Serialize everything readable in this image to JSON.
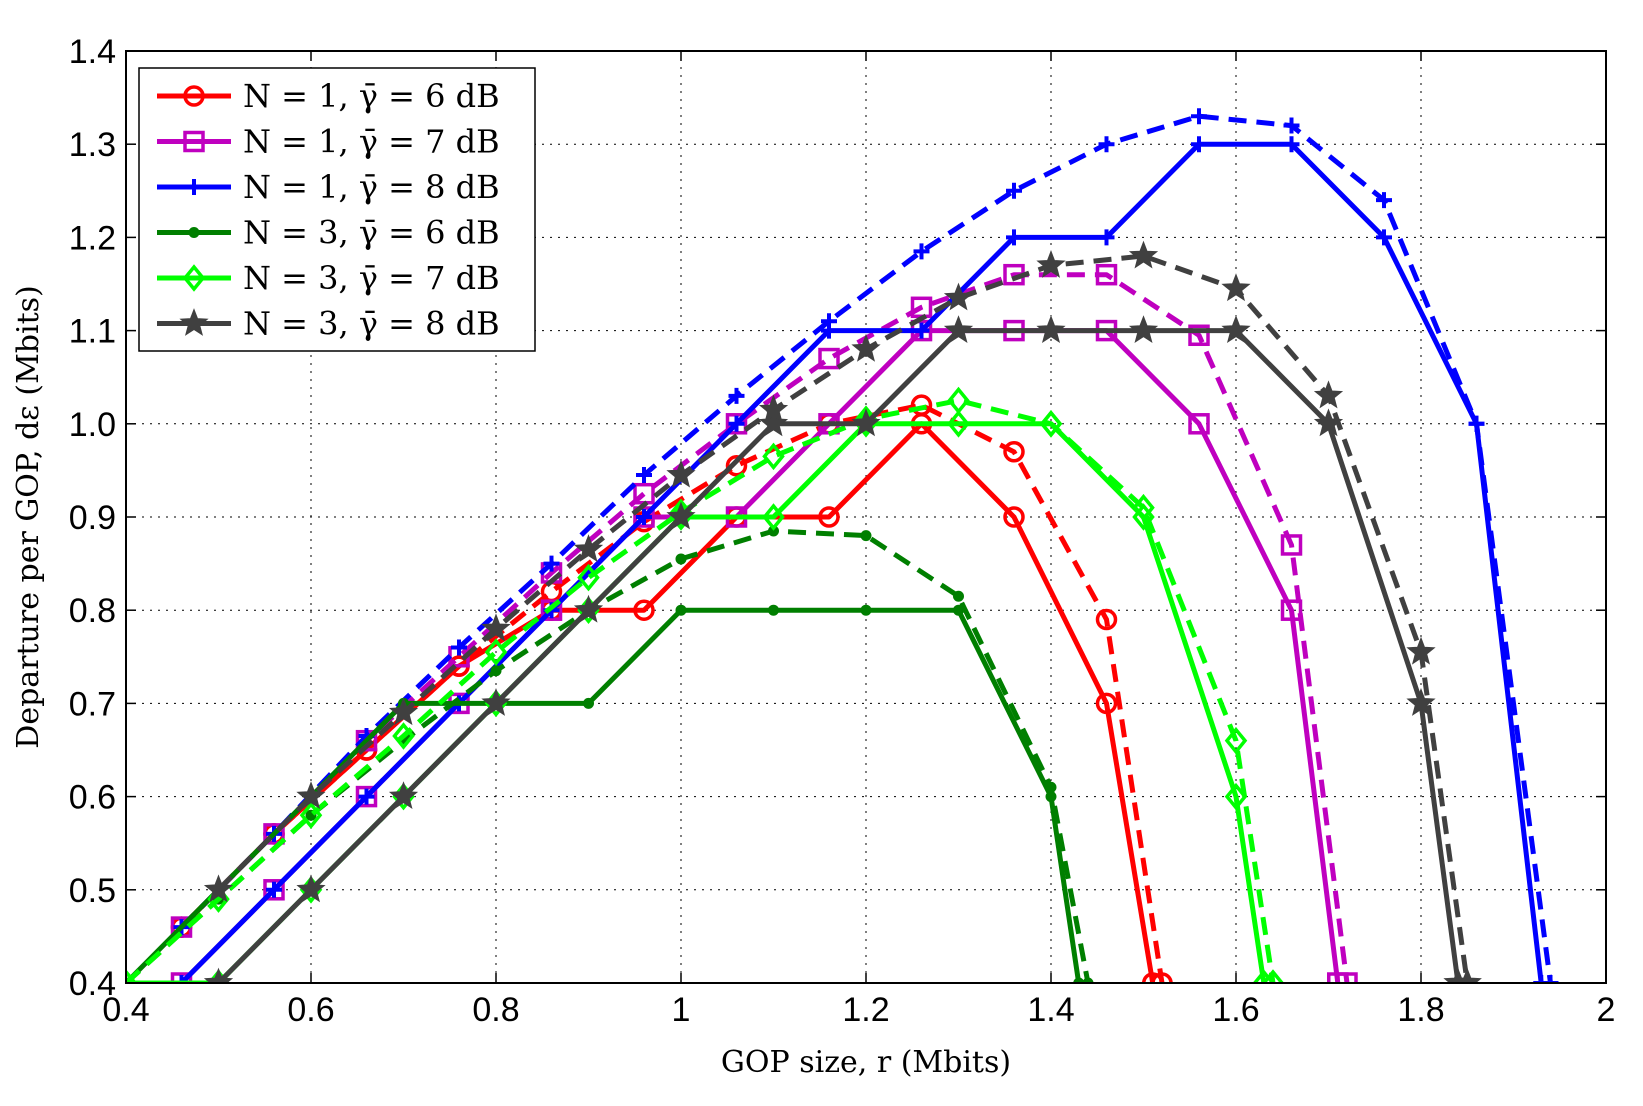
{
  "chart_data": {
    "type": "line",
    "xlabel": "GOP size, r (Mbits)",
    "ylabel": "Departure per GOP, dε (Mbits)",
    "xlim": [
      0.4,
      2.0
    ],
    "ylim": [
      0.4,
      1.4
    ],
    "x_ticks": [
      "0.4",
      "0.6",
      "0.8",
      "1",
      "1.2",
      "1.4",
      "1.6",
      "1.8",
      "2"
    ],
    "y_ticks": [
      "0.4",
      "0.5",
      "0.6",
      "0.7",
      "0.8",
      "0.9",
      "1.0",
      "1.1",
      "1.2",
      "1.3",
      "1.4"
    ],
    "grid": true,
    "legend_position": "top-left",
    "series": [
      {
        "name": "N = 1, γ̄ = 6 dB",
        "color": "#ff0000",
        "marker": "circle",
        "style": "solid",
        "x": [
          0.46,
          0.56,
          0.66,
          0.76,
          0.86,
          0.96,
          1.06,
          1.16,
          1.26,
          1.36,
          1.46,
          1.51
        ],
        "y": [
          0.46,
          0.56,
          0.65,
          0.74,
          0.8,
          0.8,
          0.9,
          0.9,
          1.0,
          0.9,
          0.7,
          0.4
        ]
      },
      {
        "name": "",
        "color": "#ff0000",
        "marker": "circle",
        "style": "dashed",
        "x": [
          0.46,
          0.56,
          0.66,
          0.76,
          0.86,
          0.96,
          1.06,
          1.16,
          1.26,
          1.36,
          1.46,
          1.52
        ],
        "y": [
          0.46,
          0.56,
          0.65,
          0.74,
          0.82,
          0.895,
          0.955,
          1.0,
          1.02,
          0.97,
          0.79,
          0.4
        ]
      },
      {
        "name": "N = 1, γ̄ = 7 dB",
        "color": "#bf00bf",
        "marker": "square",
        "style": "solid",
        "x": [
          0.46,
          0.56,
          0.66,
          0.76,
          0.86,
          0.96,
          1.06,
          1.16,
          1.26,
          1.36,
          1.46,
          1.56,
          1.66,
          1.71
        ],
        "y": [
          0.4,
          0.5,
          0.6,
          0.7,
          0.8,
          0.9,
          0.9,
          1.0,
          1.1,
          1.1,
          1.1,
          1.0,
          0.8,
          0.4
        ]
      },
      {
        "name": "",
        "color": "#bf00bf",
        "marker": "square",
        "style": "dashed",
        "x": [
          0.46,
          0.56,
          0.66,
          0.76,
          0.86,
          0.96,
          1.06,
          1.16,
          1.26,
          1.36,
          1.46,
          1.56,
          1.66,
          1.72
        ],
        "y": [
          0.46,
          0.56,
          0.66,
          0.75,
          0.84,
          0.925,
          1.0,
          1.07,
          1.125,
          1.16,
          1.16,
          1.095,
          0.87,
          0.4
        ]
      },
      {
        "name": "N = 1, γ̄ = 8 dB",
        "color": "#0000ff",
        "marker": "plus",
        "style": "solid",
        "x": [
          0.46,
          0.56,
          0.66,
          0.76,
          0.86,
          0.96,
          1.06,
          1.16,
          1.26,
          1.36,
          1.46,
          1.56,
          1.66,
          1.76,
          1.86,
          1.93
        ],
        "y": [
          0.4,
          0.5,
          0.6,
          0.7,
          0.8,
          0.9,
          1.0,
          1.1,
          1.1,
          1.2,
          1.2,
          1.3,
          1.3,
          1.2,
          1.0,
          0.4
        ]
      },
      {
        "name": "",
        "color": "#0000ff",
        "marker": "plus",
        "style": "dashed",
        "x": [
          0.46,
          0.56,
          0.66,
          0.76,
          0.86,
          0.96,
          1.06,
          1.16,
          1.26,
          1.36,
          1.46,
          1.56,
          1.66,
          1.76,
          1.86,
          1.94
        ],
        "y": [
          0.46,
          0.56,
          0.665,
          0.76,
          0.85,
          0.945,
          1.03,
          1.11,
          1.185,
          1.25,
          1.3,
          1.33,
          1.32,
          1.24,
          1.0,
          0.4
        ]
      },
      {
        "name": "N = 3, γ̄ = 6 dB",
        "color": "#007f00",
        "marker": "dot",
        "style": "solid",
        "x": [
          0.4,
          0.5,
          0.6,
          0.7,
          0.8,
          0.9,
          1.0,
          1.1,
          1.2,
          1.3,
          1.4,
          1.43
        ],
        "y": [
          0.4,
          0.5,
          0.6,
          0.7,
          0.7,
          0.7,
          0.8,
          0.8,
          0.8,
          0.8,
          0.6,
          0.4
        ]
      },
      {
        "name": "",
        "color": "#007f00",
        "marker": "dot",
        "style": "dashed",
        "x": [
          0.4,
          0.5,
          0.6,
          0.7,
          0.8,
          0.9,
          1.0,
          1.1,
          1.2,
          1.3,
          1.4,
          1.44
        ],
        "y": [
          0.4,
          0.49,
          0.58,
          0.66,
          0.735,
          0.8,
          0.855,
          0.885,
          0.88,
          0.815,
          0.61,
          0.4
        ]
      },
      {
        "name": "N = 3, γ̄ = 7 dB",
        "color": "#00ff00",
        "marker": "diamond",
        "style": "solid",
        "x": [
          0.4,
          0.5,
          0.6,
          0.7,
          0.8,
          0.9,
          1.0,
          1.1,
          1.2,
          1.3,
          1.4,
          1.5,
          1.6,
          1.63
        ],
        "y": [
          0.4,
          0.4,
          0.5,
          0.6,
          0.7,
          0.8,
          0.9,
          0.9,
          1.0,
          1.0,
          1.0,
          0.9,
          0.6,
          0.4
        ]
      },
      {
        "name": "",
        "color": "#00ff00",
        "marker": "diamond",
        "style": "dashed",
        "x": [
          0.4,
          0.5,
          0.6,
          0.7,
          0.8,
          0.9,
          1.0,
          1.1,
          1.2,
          1.3,
          1.4,
          1.5,
          1.6,
          1.64
        ],
        "y": [
          0.4,
          0.49,
          0.58,
          0.665,
          0.755,
          0.835,
          0.905,
          0.965,
          1.005,
          1.025,
          1.0,
          0.91,
          0.66,
          0.4
        ]
      },
      {
        "name": "N = 3, γ̄ = 8 dB",
        "color": "#404040",
        "marker": "star",
        "style": "solid",
        "x": [
          0.5,
          0.6,
          0.7,
          0.8,
          0.9,
          1.0,
          1.1,
          1.2,
          1.3,
          1.4,
          1.5,
          1.6,
          1.7,
          1.8,
          1.84
        ],
        "y": [
          0.4,
          0.5,
          0.6,
          0.7,
          0.8,
          0.9,
          1.0,
          1.0,
          1.1,
          1.1,
          1.1,
          1.1,
          1.0,
          0.7,
          0.4
        ]
      },
      {
        "name": "",
        "color": "#404040",
        "marker": "star",
        "style": "dashed",
        "x": [
          0.5,
          0.6,
          0.7,
          0.8,
          0.9,
          1.0,
          1.1,
          1.2,
          1.3,
          1.4,
          1.5,
          1.6,
          1.7,
          1.8,
          1.85
        ],
        "y": [
          0.5,
          0.6,
          0.69,
          0.78,
          0.865,
          0.945,
          1.015,
          1.08,
          1.135,
          1.17,
          1.18,
          1.145,
          1.03,
          0.755,
          0.4
        ]
      }
    ]
  }
}
